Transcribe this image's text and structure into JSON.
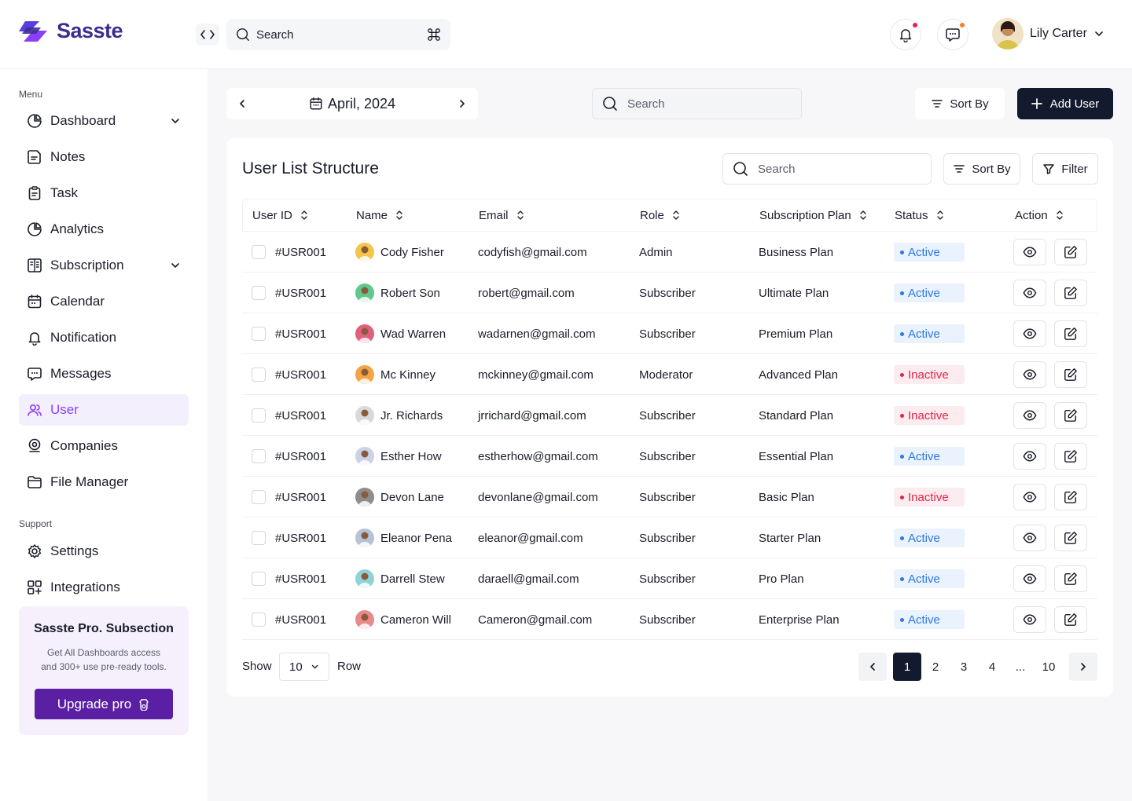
{
  "brand": {
    "name": "Sasste",
    "color": "#3b2d8f",
    "accent": "#8a3ffc"
  },
  "header": {
    "search_placeholder": "Search",
    "shortcut_icon": "command-icon",
    "user_name": "Lily Carter",
    "notification_dot_color": "#e0254a",
    "message_dot_color": "#f0822a"
  },
  "sidebar": {
    "menu_label": "Menu",
    "support_label": "Support",
    "items": [
      {
        "label": "Dashboard",
        "icon": "pie-chart-icon",
        "expandable": true
      },
      {
        "label": "Notes",
        "icon": "note-icon"
      },
      {
        "label": "Task",
        "icon": "clipboard-icon"
      },
      {
        "label": "Analytics",
        "icon": "analytics-icon"
      },
      {
        "label": "Subscription",
        "icon": "subscription-icon",
        "expandable": true
      },
      {
        "label": "Calendar",
        "icon": "calendar-icon"
      },
      {
        "label": "Notification",
        "icon": "bell-icon"
      },
      {
        "label": "Messages",
        "icon": "chat-icon"
      },
      {
        "label": "User",
        "icon": "users-icon",
        "active": true
      },
      {
        "label": "Companies",
        "icon": "companies-icon"
      },
      {
        "label": "File Manager",
        "icon": "folder-icon"
      }
    ],
    "support_items": [
      {
        "label": "Settings",
        "icon": "gear-icon"
      },
      {
        "label": "Integrations",
        "icon": "integrations-icon"
      }
    ],
    "promo": {
      "title": "Sasste Pro. Subsection",
      "desc_line1": "Get All Dashboards access",
      "desc_line2": "and 300+ use pre-ready tools.",
      "button": "Upgrade pro"
    }
  },
  "toolbar": {
    "date": "April, 2024",
    "search_placeholder": "Search",
    "sort_label": "Sort By",
    "add_label": "Add User"
  },
  "card": {
    "title": "User List Structure",
    "search_placeholder": "Search",
    "sort_label": "Sort By",
    "filter_label": "Filter"
  },
  "table": {
    "columns": [
      "User ID",
      "Name",
      "Email",
      "Role",
      "Subscription Plan",
      "Status",
      "Action"
    ],
    "rows": [
      {
        "id": "#USR001",
        "name": "Cody Fisher",
        "email": "codyfish@gmail.com",
        "role": "Admin",
        "plan": "Business Plan",
        "status": "Active",
        "avatar_color": "#f4c54a"
      },
      {
        "id": "#USR001",
        "name": "Robert Son",
        "email": "robert@gmail.com",
        "role": "Subscriber",
        "plan": "Ultimate Plan",
        "status": "Active",
        "avatar_color": "#5fc98b"
      },
      {
        "id": "#USR001",
        "name": "Wad Warren",
        "email": "wadarnen@gmail.com",
        "role": "Subscriber",
        "plan": "Premium Plan",
        "status": "Active",
        "avatar_color": "#e0607e"
      },
      {
        "id": "#USR001",
        "name": "Mc Kinney",
        "email": "mckinney@gmail.com",
        "role": "Moderator",
        "plan": "Advanced Plan",
        "status": "Inactive",
        "avatar_color": "#f5a445"
      },
      {
        "id": "#USR001",
        "name": "Jr. Richards",
        "email": "jrrichard@gmail.com",
        "role": "Subscriber",
        "plan": "Standard Plan",
        "status": "Inactive",
        "avatar_color": "#d9d9d9"
      },
      {
        "id": "#USR001",
        "name": "Esther How",
        "email": "estherhow@gmail.com",
        "role": "Subscriber",
        "plan": "Essential Plan",
        "status": "Active",
        "avatar_color": "#c9d3e6"
      },
      {
        "id": "#USR001",
        "name": "Devon Lane",
        "email": "devonlane@gmail.com",
        "role": "Subscriber",
        "plan": "Basic Plan",
        "status": "Inactive",
        "avatar_color": "#8d8d8d"
      },
      {
        "id": "#USR001",
        "name": "Eleanor Pena",
        "email": "eleanor@gmail.com",
        "role": "Subscriber",
        "plan": "Starter Plan",
        "status": "Active",
        "avatar_color": "#b6c2d6"
      },
      {
        "id": "#USR001",
        "name": "Darrell Stew",
        "email": "daraell@gmail.com",
        "role": "Subscriber",
        "plan": "Pro Plan",
        "status": "Active",
        "avatar_color": "#8fd3d8"
      },
      {
        "id": "#USR001",
        "name": "Cameron Will",
        "email": "Cameron@gmail.com",
        "role": "Subscriber",
        "plan": "Enterprise Plan",
        "status": "Active",
        "avatar_color": "#e98a8a"
      }
    ]
  },
  "pagination": {
    "show_label": "Show",
    "rows_value": "10",
    "row_label": "Row",
    "pages": [
      "1",
      "2",
      "3",
      "4",
      "...",
      "10"
    ],
    "current": "1"
  }
}
